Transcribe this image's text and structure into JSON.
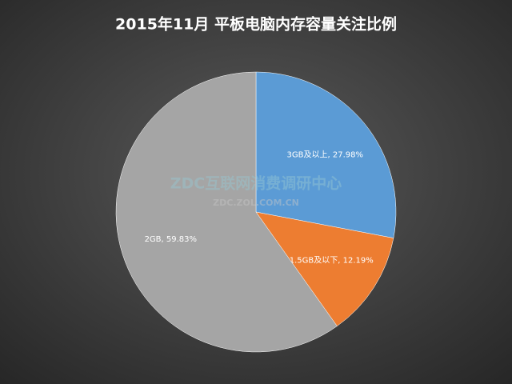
{
  "chart_data": {
    "type": "pie",
    "title": "2015年11月  平板电脑内存容量关注比例",
    "values": [
      27.98,
      12.19,
      59.83
    ],
    "value_labels": [
      "3GB及以上, 27.98%",
      "1.5GB及以下, 12.19%",
      "2GB, 59.83%"
    ],
    "colors": [
      "#5b9bd5",
      "#ed7d31",
      "#a5a5a5"
    ],
    "watermark": "ZDC互联网消费调研中心",
    "watermark_url": "ZDC.ZOL.COM.CN"
  }
}
